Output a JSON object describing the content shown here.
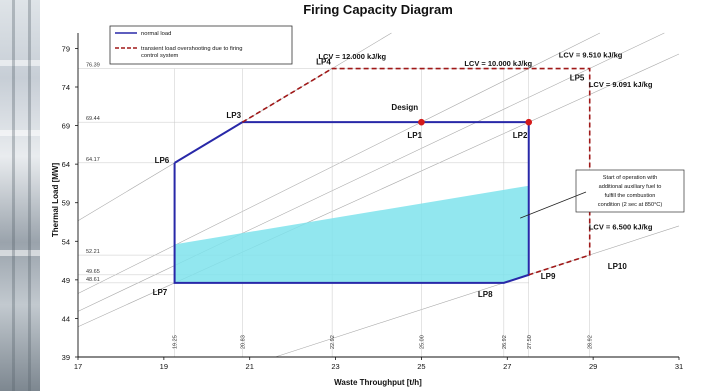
{
  "chart_data": {
    "type": "line",
    "title": "Firing Capacity Diagram",
    "xlabel": "Waste Throughput [t/h]",
    "ylabel": "Thermal Load [MW]",
    "xlim": [
      17,
      31
    ],
    "ylim": [
      39,
      81
    ],
    "x_ticks": [
      "17",
      "19",
      "21",
      "23",
      "25",
      "27",
      "29",
      "31"
    ],
    "y_ticks": [
      "39",
      "44",
      "49",
      "54",
      "59",
      "64",
      "69",
      "74",
      "79"
    ],
    "grid": false,
    "legend_position": "top-left",
    "legend": [
      {
        "label": "normal load",
        "color": "#2828a8",
        "style": "solid"
      },
      {
        "label": "transient load overshooting due to firing control system",
        "color": "#a01818",
        "style": "dashed"
      }
    ],
    "series": [
      {
        "name": "normal load",
        "points": [
          [
            19.25,
            64.17
          ],
          [
            20.83,
            69.44
          ],
          [
            27.5,
            69.44
          ],
          [
            27.5,
            49.65
          ],
          [
            26.92,
            48.61
          ],
          [
            19.25,
            48.61
          ],
          [
            19.25,
            64.17
          ]
        ]
      },
      {
        "name": "transient load overshooting due to firing control system",
        "points": [
          [
            20.83,
            69.44
          ],
          [
            22.92,
            76.39
          ],
          [
            28.92,
            76.39
          ],
          [
            28.92,
            52.21
          ],
          [
            27.5,
            49.65
          ]
        ]
      }
    ],
    "shaded_region": {
      "points": [
        [
          19.25,
          53.6
        ],
        [
          27.5,
          61.2
        ],
        [
          27.5,
          49.65
        ],
        [
          26.92,
          48.61
        ],
        [
          19.25,
          48.61
        ]
      ],
      "color": "#7fe3ec"
    },
    "operating_points": [
      {
        "label": "LP1",
        "x": 25.0,
        "y": 69.44
      },
      {
        "label": "LP2",
        "x": 27.5,
        "y": 69.44
      },
      {
        "label": "LP3",
        "x": 20.83,
        "y": 69.44
      },
      {
        "label": "LP4",
        "x": 22.92,
        "y": 76.39
      },
      {
        "label": "LP5",
        "x": 28.92,
        "y": 76.39
      },
      {
        "label": "LP6",
        "x": 19.25,
        "y": 64.17
      },
      {
        "label": "LP7",
        "x": 19.25,
        "y": 48.61
      },
      {
        "label": "LP8",
        "x": 26.92,
        "y": 48.61
      },
      {
        "label": "LP9",
        "x": 27.5,
        "y": 49.65
      },
      {
        "label": "LP10",
        "x": 28.92,
        "y": 52.21
      }
    ],
    "design_point": {
      "label": "Design",
      "x": 25.0,
      "y": 69.44
    },
    "design_markers": [
      {
        "x": 25.0,
        "y": 69.44
      },
      {
        "x": 27.5,
        "y": 69.44
      }
    ],
    "lcv_lines": [
      {
        "label": "LCV = 12.000 kJ/kg",
        "slope": 3.333
      },
      {
        "label": "LCV = 10.000 kJ/kg",
        "slope": 2.778
      },
      {
        "label": "LCV = 9.510 kJ/kg",
        "slope": 2.642
      },
      {
        "label": "LCV = 9.091 kJ/kg",
        "slope": 2.525
      },
      {
        "label": "LCV = 6.500 kJ/kg",
        "slope": 1.806
      }
    ],
    "ref_y_values": [
      "76.39",
      "69.44",
      "64.17",
      "52.21",
      "49.65",
      "48.61"
    ],
    "ref_x_values": [
      "19.25",
      "20.83",
      "22.92",
      "25.00",
      "26.92",
      "27.50",
      "28.92"
    ],
    "annotation": {
      "text": [
        "Start of operation with",
        "additional auxiliary fuel to",
        "fulfill the combustion",
        "condition (2 sec  at 850°C)"
      ],
      "target": [
        27.3,
        57.0
      ]
    }
  }
}
